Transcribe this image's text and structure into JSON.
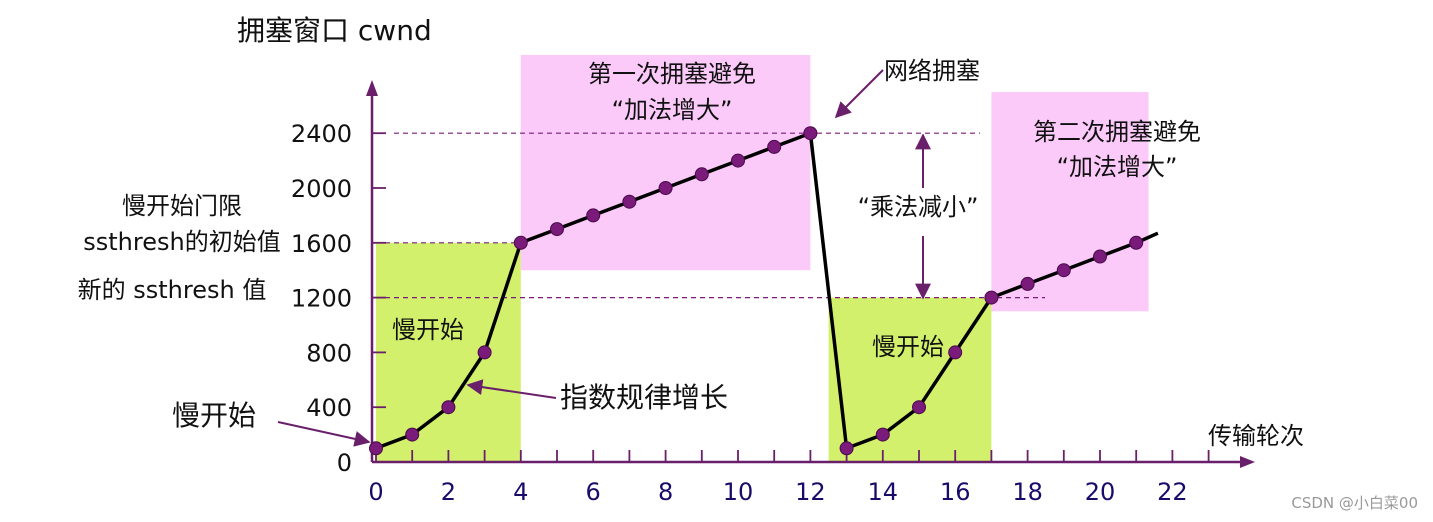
{
  "chart_data": {
    "type": "line",
    "ylabel": "拥塞窗口 cwnd",
    "xlabel": "传输轮次",
    "x_ticks": [
      0,
      2,
      4,
      6,
      8,
      10,
      12,
      14,
      16,
      18,
      20,
      22
    ],
    "y_ticks": [
      0,
      400,
      800,
      1200,
      1600,
      2000,
      2400
    ],
    "xlim": [
      0,
      23.5
    ],
    "ylim": [
      0,
      2600
    ],
    "series": [
      {
        "x": [
          0,
          1,
          2,
          3,
          4,
          5,
          6,
          7,
          8,
          9,
          10,
          11,
          12,
          13,
          14,
          15,
          16,
          17,
          18,
          19,
          20,
          21
        ],
        "values": [
          100,
          200,
          400,
          800,
          1600,
          1700,
          1800,
          1900,
          2000,
          2100,
          2200,
          2300,
          2400,
          100,
          200,
          400,
          800,
          1200,
          1300,
          1400,
          1500,
          1600
        ]
      }
    ],
    "thresholds": {
      "initial_ssthresh": 1600,
      "new_ssthresh": 1200,
      "peak": 2400
    },
    "regions": [
      {
        "label": "慢开始",
        "x_range": [
          0,
          4
        ],
        "y_range": [
          0,
          1600
        ],
        "color": "#d2f06c"
      },
      {
        "label_lines": [
          "第一次拥塞避免",
          "“加法增大”"
        ],
        "x_range": [
          4,
          12
        ],
        "y_range": [
          1400,
          3000
        ],
        "color": "#fbcaf9"
      },
      {
        "label": "慢开始",
        "x_range": [
          13,
          17
        ],
        "y_range": [
          0,
          1200
        ],
        "color": "#d2f06c"
      },
      {
        "label_lines": [
          "第二次拥塞避免",
          "“加法增大”"
        ],
        "x_range": [
          17,
          23
        ],
        "y_range": [
          1100,
          2700
        ],
        "color": "#fbcaf9"
      }
    ],
    "annotations": {
      "ssthresh_initial": [
        "慢开始门限",
        "ssthresh的初始值"
      ],
      "ssthresh_new": "新的 ssthresh 值",
      "slow_start_left": "慢开始",
      "exponential": "指数规律增长",
      "congestion": "网络拥塞",
      "multiplicative": "“乘法减小”"
    },
    "colors": {
      "line": "#000000",
      "point": "#7a1a7a",
      "axis": "#6a1f6a",
      "x_tick_labels": "#1a0b6a",
      "dashed": "#7a1a7a",
      "arrow": "#6a1f6a"
    },
    "grid": false
  },
  "watermark": "CSDN @小白菜00"
}
